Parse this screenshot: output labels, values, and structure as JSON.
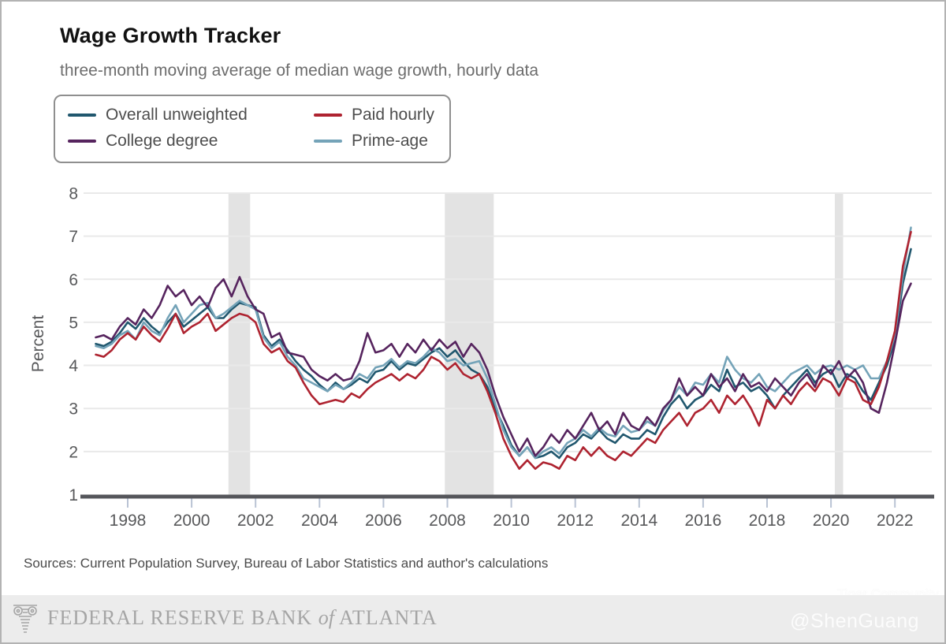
{
  "chart_data": {
    "type": "line",
    "title": "Wage Growth Tracker",
    "subtitle": "three-month moving average of median wage growth, hourly data",
    "xlabel": "",
    "ylabel": "Percent",
    "ylim": [
      1,
      8
    ],
    "yticks": [
      1,
      2,
      3,
      4,
      5,
      6,
      7,
      8
    ],
    "xticks": [
      1998,
      2000,
      2002,
      2004,
      2006,
      2008,
      2010,
      2012,
      2014,
      2016,
      2018,
      2020,
      2022
    ],
    "xlim": [
      1996.6,
      2023.1
    ],
    "grid": "horizontal",
    "x_start": 1997.0,
    "x_step": 0.25,
    "x_unit": "year",
    "recession_bands": [
      [
        2001.15,
        2001.83
      ],
      [
        2007.92,
        2009.45
      ],
      [
        2020.12,
        2020.38
      ]
    ],
    "band_color": "#e3e3e3",
    "gridline_color": "#e9e9e9",
    "axis_color": "#55565b",
    "tick_color": "#b9c3d4",
    "text_color": "#58595b",
    "legend": {
      "position": "top-left",
      "items": [
        {
          "label": "Overall unweighted",
          "color": "#20576e"
        },
        {
          "label": "Paid hourly",
          "color": "#ae2330"
        },
        {
          "label": "College degree",
          "color": "#56245e"
        },
        {
          "label": "Prime-age",
          "color": "#74a3b8"
        }
      ]
    },
    "series": [
      {
        "name": "Overall unweighted",
        "color": "#20576e",
        "values": [
          4.5,
          4.45,
          4.55,
          4.75,
          5.0,
          4.85,
          5.1,
          4.9,
          4.75,
          5.0,
          5.2,
          4.9,
          5.05,
          5.2,
          5.35,
          5.1,
          5.1,
          5.3,
          5.45,
          5.4,
          5.35,
          4.7,
          4.45,
          4.6,
          4.35,
          4.1,
          3.9,
          3.75,
          3.55,
          3.4,
          3.6,
          3.45,
          3.55,
          3.7,
          3.6,
          3.85,
          3.9,
          4.1,
          3.9,
          4.05,
          4.0,
          4.15,
          4.3,
          4.4,
          4.2,
          4.35,
          4.1,
          3.9,
          3.8,
          3.5,
          3.0,
          2.6,
          2.15,
          1.9,
          2.1,
          1.85,
          1.9,
          2.0,
          1.85,
          2.1,
          2.2,
          2.4,
          2.3,
          2.5,
          2.3,
          2.2,
          2.4,
          2.3,
          2.3,
          2.5,
          2.4,
          2.8,
          3.1,
          3.3,
          3.0,
          3.2,
          3.3,
          3.55,
          3.4,
          3.9,
          3.5,
          3.6,
          3.4,
          3.5,
          3.3,
          3.0,
          3.3,
          3.5,
          3.7,
          3.9,
          3.6,
          3.8,
          3.9,
          3.5,
          3.8,
          3.7,
          3.4,
          3.2,
          3.6,
          4.0,
          4.6,
          5.9,
          6.7
        ]
      },
      {
        "name": "Prime-age",
        "color": "#74a3b8",
        "values": [
          4.45,
          4.4,
          4.5,
          4.7,
          4.8,
          4.6,
          5.0,
          4.8,
          4.7,
          5.1,
          5.4,
          5.0,
          5.2,
          5.4,
          5.45,
          5.1,
          5.2,
          5.35,
          5.5,
          5.4,
          5.3,
          4.65,
          4.4,
          4.55,
          4.2,
          4.0,
          3.7,
          3.6,
          3.5,
          3.4,
          3.55,
          3.45,
          3.6,
          3.8,
          3.7,
          3.95,
          4.0,
          4.15,
          3.95,
          4.1,
          4.05,
          4.2,
          4.4,
          4.3,
          4.1,
          4.15,
          4.0,
          4.05,
          4.1,
          3.7,
          3.1,
          2.5,
          2.1,
          1.9,
          2.1,
          1.85,
          2.0,
          2.1,
          1.95,
          2.2,
          2.3,
          2.5,
          2.35,
          2.55,
          2.4,
          2.35,
          2.6,
          2.45,
          2.5,
          2.7,
          2.6,
          2.95,
          3.2,
          3.5,
          3.3,
          3.6,
          3.55,
          3.8,
          3.6,
          4.2,
          3.9,
          3.7,
          3.6,
          3.8,
          3.5,
          3.4,
          3.6,
          3.8,
          3.9,
          4.0,
          3.8,
          3.95,
          4.0,
          3.9,
          4.0,
          3.9,
          4.0,
          3.7,
          3.7,
          4.1,
          4.7,
          6.1,
          7.2
        ]
      },
      {
        "name": "College degree",
        "color": "#56245e",
        "values": [
          4.65,
          4.7,
          4.6,
          4.9,
          5.1,
          4.95,
          5.3,
          5.1,
          5.4,
          5.85,
          5.6,
          5.75,
          5.4,
          5.6,
          5.35,
          5.8,
          6.0,
          5.6,
          6.05,
          5.6,
          5.3,
          5.2,
          4.65,
          4.75,
          4.3,
          4.25,
          4.2,
          3.9,
          3.75,
          3.65,
          3.8,
          3.65,
          3.7,
          4.1,
          4.75,
          4.3,
          4.35,
          4.5,
          4.2,
          4.5,
          4.3,
          4.6,
          4.35,
          4.6,
          4.4,
          4.55,
          4.2,
          4.5,
          4.3,
          3.9,
          3.3,
          2.8,
          2.4,
          2.0,
          2.3,
          1.9,
          2.1,
          2.4,
          2.2,
          2.5,
          2.3,
          2.6,
          2.9,
          2.5,
          2.7,
          2.4,
          2.9,
          2.6,
          2.5,
          2.8,
          2.6,
          3.0,
          3.2,
          3.7,
          3.3,
          3.5,
          3.3,
          3.8,
          3.5,
          3.7,
          3.4,
          3.8,
          3.5,
          3.6,
          3.4,
          3.7,
          3.5,
          3.3,
          3.6,
          3.8,
          3.5,
          4.0,
          3.8,
          4.1,
          3.7,
          3.9,
          3.6,
          3.0,
          2.9,
          3.6,
          4.5,
          5.5,
          5.9
        ]
      },
      {
        "name": "Paid hourly",
        "color": "#ae2330",
        "values": [
          4.25,
          4.2,
          4.35,
          4.6,
          4.75,
          4.6,
          4.9,
          4.7,
          4.55,
          4.85,
          5.2,
          4.75,
          4.9,
          5.0,
          5.2,
          4.8,
          4.95,
          5.1,
          5.2,
          5.15,
          5.0,
          4.5,
          4.3,
          4.4,
          4.1,
          3.95,
          3.6,
          3.3,
          3.1,
          3.15,
          3.2,
          3.15,
          3.35,
          3.25,
          3.45,
          3.6,
          3.7,
          3.8,
          3.65,
          3.8,
          3.7,
          3.9,
          4.2,
          4.1,
          3.9,
          4.05,
          3.8,
          3.7,
          3.8,
          3.4,
          2.9,
          2.3,
          1.9,
          1.6,
          1.8,
          1.6,
          1.75,
          1.7,
          1.6,
          1.9,
          1.8,
          2.1,
          1.9,
          2.1,
          1.9,
          1.8,
          2.0,
          1.9,
          2.1,
          2.3,
          2.2,
          2.5,
          2.7,
          2.9,
          2.6,
          2.9,
          3.0,
          3.2,
          2.9,
          3.3,
          3.1,
          3.3,
          3.0,
          2.6,
          3.2,
          3.0,
          3.3,
          3.1,
          3.4,
          3.6,
          3.4,
          3.7,
          3.6,
          3.3,
          3.7,
          3.6,
          3.2,
          3.1,
          3.5,
          4.1,
          4.8,
          6.3,
          7.1
        ]
      }
    ]
  },
  "sources": "Sources: Current Population Survey, Bureau of Labor Statistics and author's calculations",
  "footer": {
    "bank_text": "FEDERAL RESERVE BANK",
    "of_text": "of",
    "city_text": "ATLANTA"
  },
  "watermark": {
    "community": "Tiger Community",
    "handle": "@ShenGuang"
  }
}
